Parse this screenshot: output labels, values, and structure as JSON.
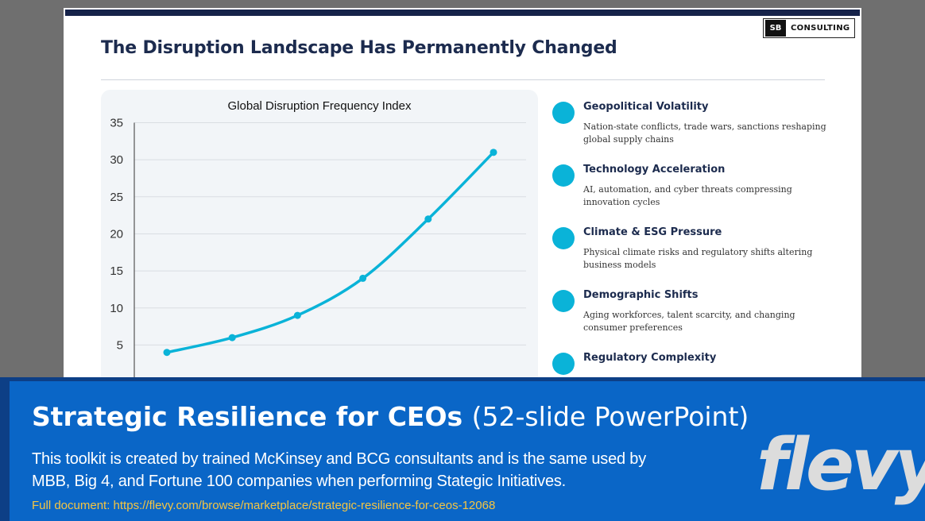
{
  "slide": {
    "logo_mark": "SB",
    "logo_text": "CONSULTING",
    "title": "The Disruption Landscape Has Permanently Changed",
    "factors": [
      {
        "title": "Geopolitical Volatility",
        "desc": "Nation-state conflicts, trade wars, sanctions reshaping global supply chains"
      },
      {
        "title": "Technology Acceleration",
        "desc": "AI, automation, and cyber threats compressing innovation cycles"
      },
      {
        "title": "Climate & ESG Pressure",
        "desc": "Physical climate risks and regulatory shifts altering business models"
      },
      {
        "title": "Demographic Shifts",
        "desc": "Aging workforces, talent scarcity, and changing consumer preferences"
      },
      {
        "title": "Regulatory Complexity",
        "desc": ""
      }
    ]
  },
  "chart_data": {
    "type": "line",
    "title": "Global Disruption Frequency Index",
    "y_ticks": [
      5,
      10,
      15,
      20,
      25,
      30,
      35
    ],
    "ylim": [
      0,
      35
    ],
    "grid": true,
    "series": [
      {
        "values": [
          4,
          6,
          9,
          14,
          22,
          31
        ]
      }
    ],
    "line_color": "#0ab3d8"
  },
  "banner": {
    "title_strong": "Strategic Resilience for CEOs",
    "title_light": "(52-slide PowerPoint)",
    "description": "This toolkit is created by trained McKinsey and BCG consultants and is the same used by MBB, Big 4, and Fortune 100 companies when performing Stategic Initiatives.",
    "link": "Full document: https://flevy.com/browse/marketplace/strategic-resilience-for-ceos-12068",
    "brand": "flevy"
  }
}
